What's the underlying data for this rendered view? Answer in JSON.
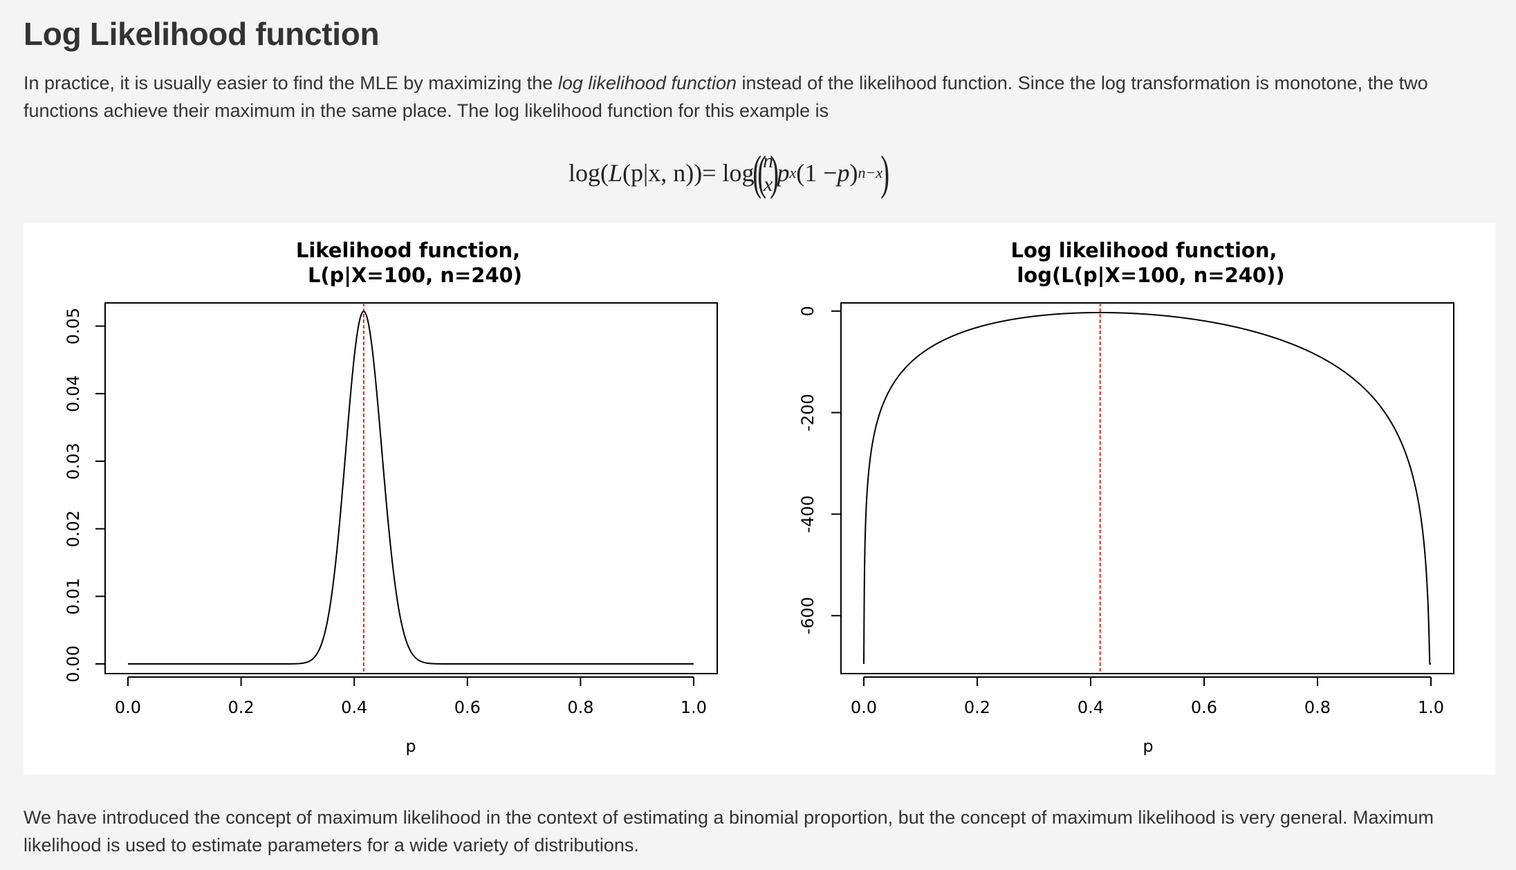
{
  "heading": "Log Likelihood function",
  "intro": {
    "before": "In practice, it is usually easier to find the MLE by maximizing the ",
    "emphasis": "log likelihood function",
    "after": " instead of the likelihood function. Since the log transformation is monotone, the two functions achieve their maximum in the same place. The log likelihood function for this example is"
  },
  "formula": {
    "lhs": "log(",
    "L": "L",
    "args": "(p|x, n))",
    "eq": " = log ",
    "binom_top": "n",
    "binom_bottom": "x",
    "p1": "p",
    "exp1": "x",
    "mid": "(1 − ",
    "p2": "p",
    "mid_close": ")",
    "exp2": "n−x"
  },
  "conclusion": "We have introduced the concept of maximum likelihood in the context of estimating a binomial proportion, but the concept of maximum likelihood is very general. Maximum likelihood is used to estimate parameters for a wide variety of distributions.",
  "colors": {
    "mle_line": "#e0241c",
    "curve": "#000000"
  },
  "chart_data": [
    {
      "type": "line",
      "title_line1": "Likelihood function,",
      "title_line2": "L(p|X=100, n=240)",
      "xlabel": "p",
      "ylabel": "",
      "xlim": [
        0.0,
        1.0
      ],
      "ylim": [
        0.0,
        0.052
      ],
      "x_ticks": [
        "0.0",
        "0.2",
        "0.4",
        "0.6",
        "0.8",
        "1.0"
      ],
      "y_ticks": [
        "0.00",
        "0.01",
        "0.02",
        "0.03",
        "0.04",
        "0.05"
      ],
      "series": [
        {
          "function": "binomial_likelihood",
          "X": 100,
          "n": 240
        }
      ],
      "mle_reference_x": 0.4167
    },
    {
      "type": "line",
      "title_line1": "Log likelihood function,",
      "title_line2": "log(L(p|X=100, n=240))",
      "xlabel": "p",
      "ylabel": "",
      "xlim": [
        0.0,
        1.0
      ],
      "ylim": [
        -695,
        -3
      ],
      "x_ticks": [
        "0.0",
        "0.2",
        "0.4",
        "0.6",
        "0.8",
        "1.0"
      ],
      "y_ticks": [
        "0",
        "-200",
        "-400",
        "-600"
      ],
      "series": [
        {
          "function": "binomial_log_likelihood",
          "X": 100,
          "n": 240
        }
      ],
      "mle_reference_x": 0.4167
    }
  ]
}
